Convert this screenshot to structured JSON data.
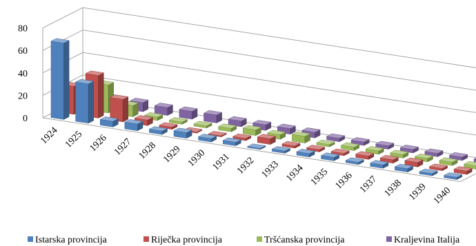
{
  "chart_data": {
    "type": "bar",
    "subtype": "3d-column-series",
    "categories": [
      "1924",
      "1925",
      "1926",
      "1927",
      "1928",
      "1929",
      "1930",
      "1931",
      "1932",
      "1933",
      "1934",
      "1935",
      "1936",
      "1937",
      "1938",
      "1939",
      "1940"
    ],
    "series": [
      {
        "name": "Istarska provincija",
        "color": "#4f81bd",
        "values": [
          68,
          35,
          5,
          6,
          3,
          5,
          3,
          3,
          1,
          2,
          3,
          3,
          2,
          3,
          3,
          2,
          2
        ]
      },
      {
        "name": "Riječka provincija",
        "color": "#c0504d",
        "values": [
          25,
          38,
          20,
          5,
          2,
          1,
          1,
          2,
          5,
          2,
          2,
          2,
          3,
          3,
          4,
          2,
          3
        ]
      },
      {
        "name": "Tršćanska provincija",
        "color": "#9bbb59",
        "values": [
          20,
          25,
          10,
          3,
          2,
          2,
          3,
          5,
          4,
          6,
          2,
          3,
          3,
          3,
          3,
          3,
          3
        ]
      },
      {
        "name": "Kraljevina Italija",
        "color": "#8064a2",
        "values": [
          9,
          8,
          8,
          7,
          7,
          7,
          5,
          5,
          5,
          5,
          3,
          3,
          3,
          3,
          3,
          3,
          3
        ]
      }
    ],
    "ylim": [
      0,
      80
    ],
    "yticks": [
      0,
      20,
      40,
      60,
      80
    ],
    "grid": true,
    "legend_position": "bottom"
  }
}
